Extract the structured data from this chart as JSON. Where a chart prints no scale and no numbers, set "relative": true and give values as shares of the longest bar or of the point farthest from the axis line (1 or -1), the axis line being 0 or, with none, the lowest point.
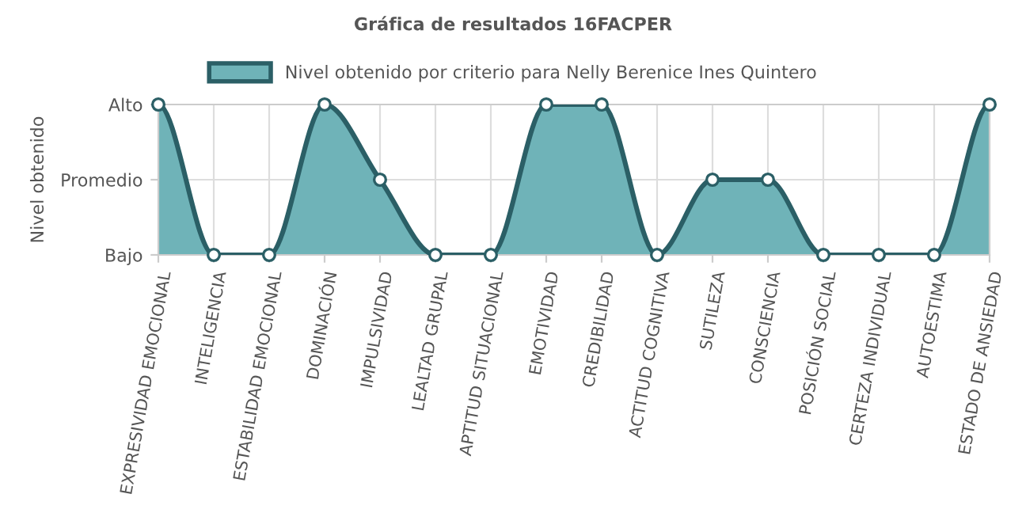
{
  "chart_data": {
    "type": "area",
    "title": "Gráfica de resultados 16FACPER",
    "ylabel": "Nivel obtenido",
    "categories": [
      "EXPRESIVIDAD EMOCIONAL",
      "INTELIGENCIA",
      "ESTABILIDAD EMOCIONAL",
      "DOMINACIÓN",
      "IMPULSIVIDAD",
      "LEALTAD GRUPAL",
      "APTITUD SITUACIONAL",
      "EMOTIVIDAD",
      "CREDIBILIDAD",
      "ACTITUD COGNITIVA",
      "SUTILEZA",
      "CONSCIENCIA",
      "POSICIÓN SOCIAL",
      "CERTEZA INDIVIDUAL",
      "AUTOESTIMA",
      "ESTADO DE ANSIEDAD"
    ],
    "series": [
      {
        "name": "Nivel obtenido por criterio para Nelly Berenice Ines Quintero",
        "color": "#2b5f66",
        "values": [
          1,
          0,
          0,
          1,
          0.5,
          0,
          0,
          1,
          1,
          0,
          0.5,
          0.5,
          0,
          0,
          0,
          1
        ]
      }
    ],
    "relative": true,
    "y_categories": [
      "Alto",
      "Promedio",
      "Bajo"
    ],
    "grid": true,
    "legend": "top",
    "marker": "circle",
    "line_style": "solid"
  }
}
